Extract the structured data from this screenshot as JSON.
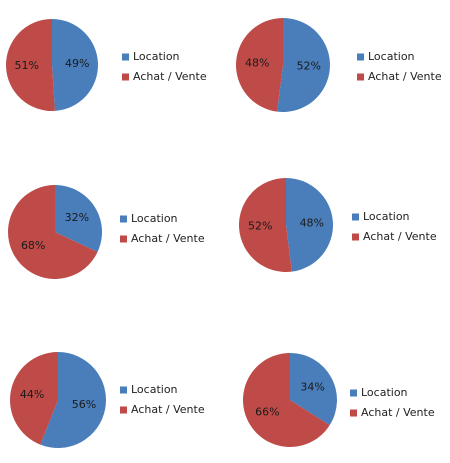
{
  "chart_data": [
    {
      "type": "pie",
      "categories": [
        "Location",
        "Achat / Vente"
      ],
      "values": [
        49,
        51
      ],
      "value_labels": [
        "49%",
        "51%"
      ],
      "colors": [
        "#4a7ebb",
        "#be4b48"
      ]
    },
    {
      "type": "pie",
      "categories": [
        "Location",
        "Achat / Vente"
      ],
      "values": [
        52,
        48
      ],
      "value_labels": [
        "52%",
        "48%"
      ],
      "colors": [
        "#4a7ebb",
        "#be4b48"
      ]
    },
    {
      "type": "pie",
      "categories": [
        "Location",
        "Achat / Vente"
      ],
      "values": [
        32,
        68
      ],
      "value_labels": [
        "32%",
        "68%"
      ],
      "colors": [
        "#4a7ebb",
        "#be4b48"
      ]
    },
    {
      "type": "pie",
      "categories": [
        "Location",
        "Achat / Vente"
      ],
      "values": [
        48,
        52
      ],
      "value_labels": [
        "48%",
        "52%"
      ],
      "colors": [
        "#4a7ebb",
        "#be4b48"
      ]
    },
    {
      "type": "pie",
      "categories": [
        "Location",
        "Achat / Vente"
      ],
      "values": [
        56,
        44
      ],
      "value_labels": [
        "56%",
        "44%"
      ],
      "colors": [
        "#4a7ebb",
        "#be4b48"
      ]
    },
    {
      "type": "pie",
      "categories": [
        "Location",
        "Achat / Vente"
      ],
      "values": [
        34,
        66
      ],
      "value_labels": [
        "34%",
        "66%"
      ],
      "colors": [
        "#4a7ebb",
        "#be4b48"
      ]
    }
  ]
}
